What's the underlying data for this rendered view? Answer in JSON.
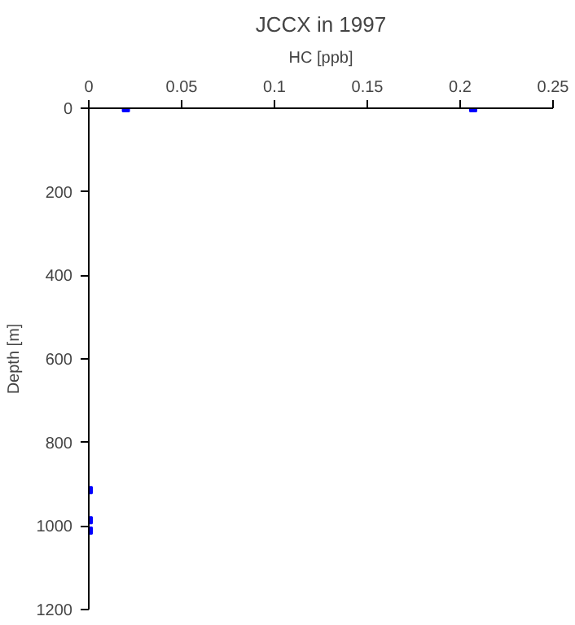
{
  "chart_data": {
    "type": "scatter",
    "title": "JCCX in 1997",
    "xlabel": "HC [ppb]",
    "ylabel": "Depth [m]",
    "x": [
      0.02,
      0.207,
      0,
      0,
      0
    ],
    "values": [
      0,
      0,
      914,
      986,
      1011
    ],
    "color": "#0000ff",
    "marker": "square",
    "xlim": [
      0,
      0.25
    ],
    "xticks": [
      0,
      0.05,
      0.1,
      0.15,
      0.2,
      0.25
    ],
    "ylim": [
      1200,
      0
    ],
    "yticks": [
      0,
      200,
      400,
      600,
      800,
      1000,
      1200
    ],
    "grid": false
  }
}
